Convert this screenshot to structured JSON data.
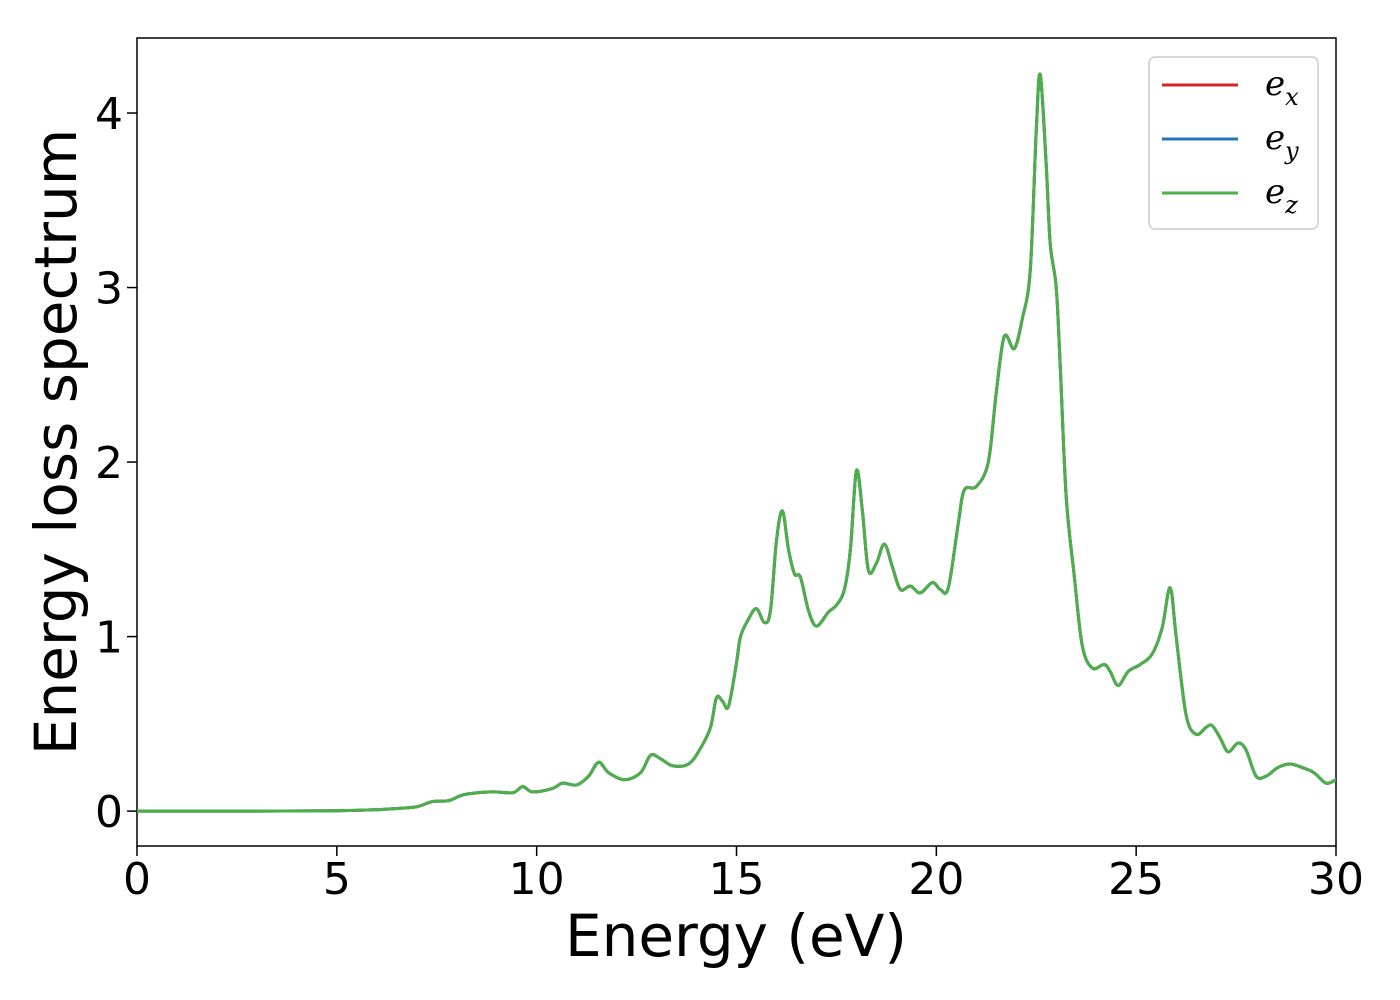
{
  "chart_data": {
    "type": "line",
    "title": "",
    "xlabel": "Energy (eV)",
    "ylabel": "Energy loss spectrum",
    "xlim": [
      0,
      30
    ],
    "ylim": [
      -0.2,
      4.43
    ],
    "xticks": [
      0,
      5,
      10,
      15,
      20,
      25,
      30
    ],
    "xtick_labels": [
      "0",
      "5",
      "10",
      "15",
      "20",
      "25",
      "30"
    ],
    "yticks": [
      0,
      1,
      2,
      3,
      4
    ],
    "ytick_labels": [
      "0",
      "1",
      "2",
      "3",
      "4"
    ],
    "grid": false,
    "legend_position": "top-right",
    "series": [
      {
        "name": "e",
        "subscript": "x",
        "color": "#d62728",
        "points": []
      },
      {
        "name": "e",
        "subscript": "y",
        "color": "#1f77b4",
        "points": []
      },
      {
        "name": "e",
        "subscript": "z",
        "color": "#4daf4a",
        "points": [
          [
            0,
            0
          ],
          [
            3,
            0
          ],
          [
            5,
            0.002
          ],
          [
            6,
            0.008
          ],
          [
            6.5,
            0.015
          ],
          [
            7,
            0.025
          ],
          [
            7.4,
            0.055
          ],
          [
            7.8,
            0.06
          ],
          [
            8.2,
            0.095
          ],
          [
            8.9,
            0.11
          ],
          [
            9.4,
            0.105
          ],
          [
            9.65,
            0.14
          ],
          [
            9.9,
            0.11
          ],
          [
            10.4,
            0.13
          ],
          [
            10.65,
            0.16
          ],
          [
            11.0,
            0.15
          ],
          [
            11.3,
            0.2
          ],
          [
            11.55,
            0.28
          ],
          [
            11.8,
            0.22
          ],
          [
            12.2,
            0.18
          ],
          [
            12.6,
            0.22
          ],
          [
            12.85,
            0.32
          ],
          [
            13.1,
            0.3
          ],
          [
            13.4,
            0.26
          ],
          [
            13.8,
            0.27
          ],
          [
            14.1,
            0.36
          ],
          [
            14.35,
            0.48
          ],
          [
            14.5,
            0.65
          ],
          [
            14.65,
            0.63
          ],
          [
            14.8,
            0.6
          ],
          [
            15.0,
            0.85
          ],
          [
            15.1,
            1.0
          ],
          [
            15.3,
            1.1
          ],
          [
            15.5,
            1.16
          ],
          [
            15.7,
            1.08
          ],
          [
            15.85,
            1.15
          ],
          [
            16.0,
            1.55
          ],
          [
            16.15,
            1.72
          ],
          [
            16.3,
            1.5
          ],
          [
            16.45,
            1.36
          ],
          [
            16.6,
            1.34
          ],
          [
            16.8,
            1.15
          ],
          [
            17.0,
            1.06
          ],
          [
            17.3,
            1.14
          ],
          [
            17.5,
            1.18
          ],
          [
            17.7,
            1.27
          ],
          [
            17.85,
            1.5
          ],
          [
            18.0,
            1.95
          ],
          [
            18.15,
            1.72
          ],
          [
            18.3,
            1.38
          ],
          [
            18.5,
            1.42
          ],
          [
            18.7,
            1.53
          ],
          [
            18.9,
            1.4
          ],
          [
            19.1,
            1.27
          ],
          [
            19.35,
            1.29
          ],
          [
            19.6,
            1.25
          ],
          [
            19.9,
            1.31
          ],
          [
            20.1,
            1.27
          ],
          [
            20.3,
            1.28
          ],
          [
            20.55,
            1.65
          ],
          [
            20.7,
            1.84
          ],
          [
            21.0,
            1.86
          ],
          [
            21.3,
            2.0
          ],
          [
            21.5,
            2.4
          ],
          [
            21.7,
            2.72
          ],
          [
            21.95,
            2.65
          ],
          [
            22.15,
            2.82
          ],
          [
            22.35,
            3.1
          ],
          [
            22.5,
            3.9
          ],
          [
            22.6,
            4.22
          ],
          [
            22.75,
            3.7
          ],
          [
            22.85,
            3.25
          ],
          [
            23.0,
            3.0
          ],
          [
            23.1,
            2.55
          ],
          [
            23.25,
            1.8
          ],
          [
            23.45,
            1.35
          ],
          [
            23.65,
            0.95
          ],
          [
            23.9,
            0.82
          ],
          [
            24.2,
            0.84
          ],
          [
            24.35,
            0.8
          ],
          [
            24.55,
            0.72
          ],
          [
            24.8,
            0.8
          ],
          [
            25.1,
            0.84
          ],
          [
            25.4,
            0.9
          ],
          [
            25.65,
            1.05
          ],
          [
            25.85,
            1.28
          ],
          [
            26.0,
            1.0
          ],
          [
            26.25,
            0.55
          ],
          [
            26.5,
            0.44
          ],
          [
            26.75,
            0.48
          ],
          [
            26.9,
            0.49
          ],
          [
            27.1,
            0.42
          ],
          [
            27.3,
            0.34
          ],
          [
            27.55,
            0.39
          ],
          [
            27.75,
            0.35
          ],
          [
            28.0,
            0.2
          ],
          [
            28.25,
            0.2
          ],
          [
            28.55,
            0.25
          ],
          [
            28.85,
            0.27
          ],
          [
            29.15,
            0.25
          ],
          [
            29.45,
            0.22
          ],
          [
            29.75,
            0.16
          ],
          [
            30.0,
            0.18
          ]
        ]
      }
    ]
  }
}
